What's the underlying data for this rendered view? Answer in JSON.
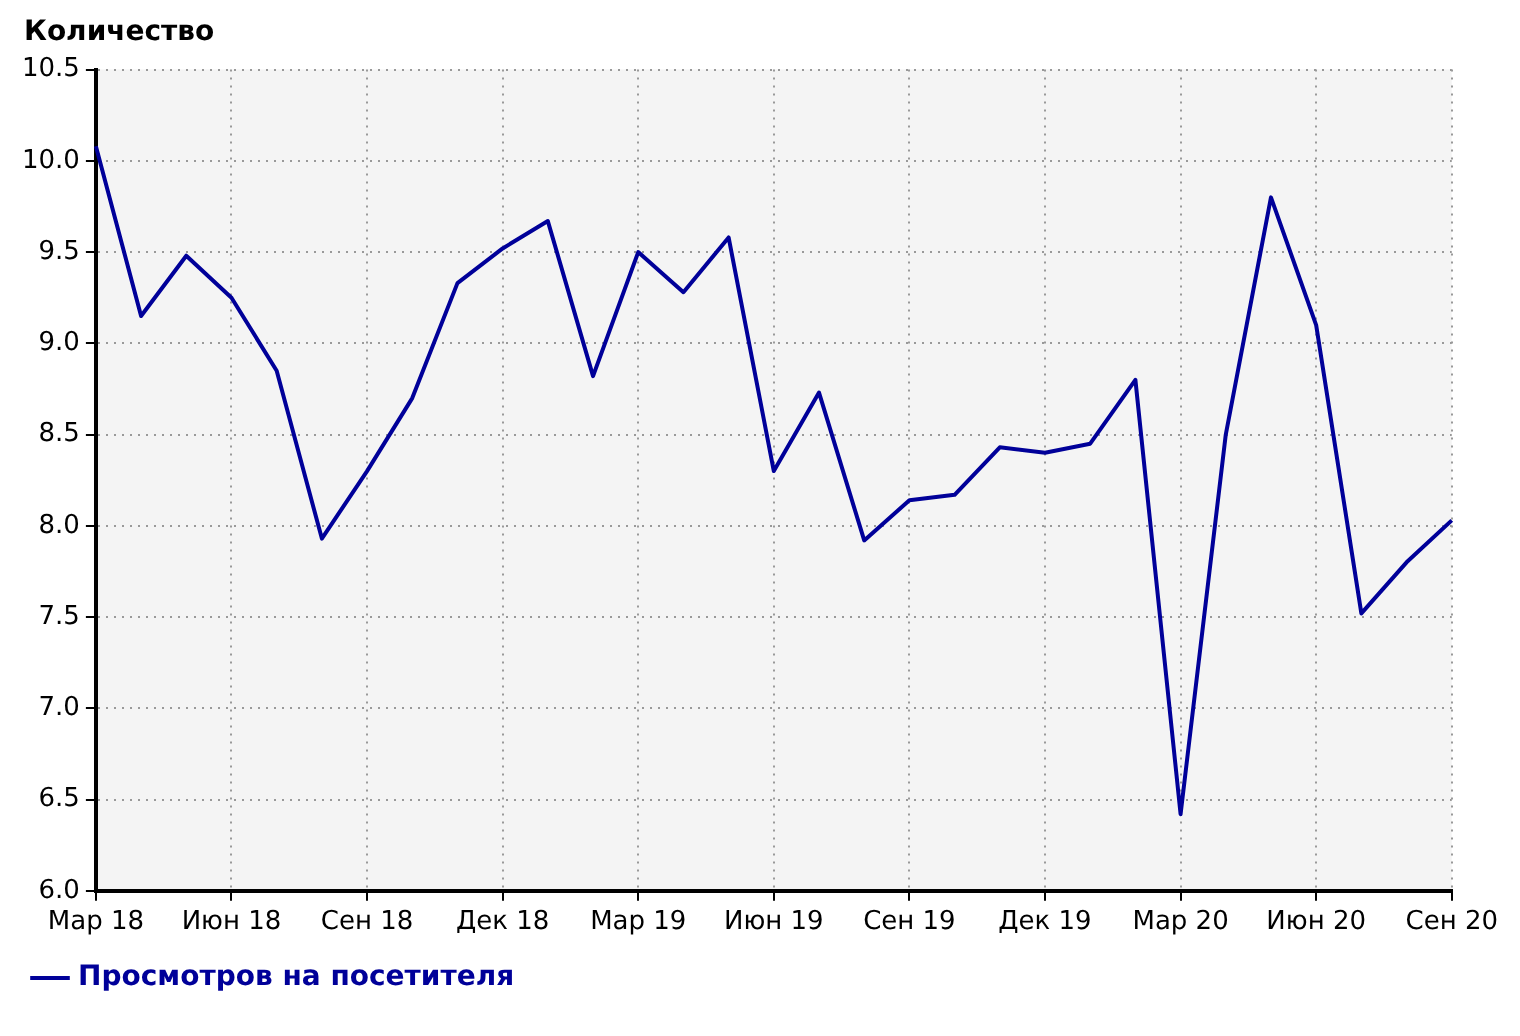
{
  "chart_data": {
    "type": "line",
    "ylabel": "Количество",
    "categories": [
      "Мар 18",
      null,
      null,
      "Июн 18",
      null,
      null,
      "Сен 18",
      null,
      null,
      "Дек 18",
      null,
      null,
      "Мар 19",
      null,
      null,
      "Июн 19",
      null,
      null,
      "Сен 19",
      null,
      null,
      "Дек 19",
      null,
      null,
      "Мар 20",
      null,
      null,
      "Июн 20",
      null,
      null,
      "Сен 20"
    ],
    "series": [
      {
        "name": "Просмотров на посетителя",
        "color": "#000099",
        "values": [
          10.08,
          9.15,
          9.48,
          9.25,
          8.85,
          7.93,
          8.3,
          8.7,
          9.33,
          9.52,
          9.67,
          8.82,
          9.5,
          9.28,
          9.58,
          8.3,
          8.73,
          7.92,
          8.14,
          8.17,
          8.43,
          8.4,
          8.45,
          8.8,
          6.42,
          8.5,
          9.8,
          9.1,
          7.52,
          7.8,
          8.03
        ]
      }
    ],
    "ylim": [
      6,
      10.5
    ],
    "yticks": [
      {
        "value": 6,
        "label": "6.0"
      },
      {
        "value": 6.5,
        "label": "6.5"
      },
      {
        "value": 7,
        "label": "7.0"
      },
      {
        "value": 7.5,
        "label": "7.5"
      },
      {
        "value": 8,
        "label": "8.0"
      },
      {
        "value": 8.5,
        "label": "8.5"
      },
      {
        "value": 9,
        "label": "9.0"
      },
      {
        "value": 9.5,
        "label": "9.5"
      },
      {
        "value": 10,
        "label": "10.0"
      },
      {
        "value": 10.5,
        "label": "10.5"
      }
    ],
    "grid": true,
    "legend": "bottom left",
    "marker": "none",
    "line_style": "solid"
  }
}
